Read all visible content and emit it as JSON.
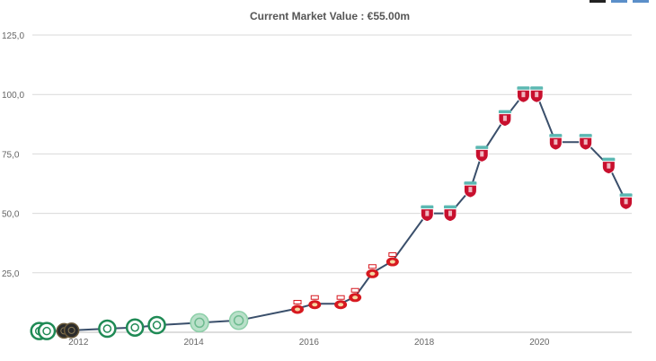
{
  "chart_data": {
    "type": "line",
    "title": "Current Market Value : €55.00m",
    "xlabel": "",
    "ylabel": "",
    "x_ticks": [
      "2012",
      "2014",
      "2016",
      "2018",
      "2020"
    ],
    "y_ticks": [
      "25,0",
      "50,0",
      "75,0",
      "100,0",
      "125,0"
    ],
    "xlim": [
      2011.2,
      2021.6
    ],
    "ylim": [
      0,
      125
    ],
    "grid": true,
    "legend": "none",
    "series": [
      {
        "x": [
          2011.32,
          2011.45,
          2011.75,
          2011.88,
          2012.5,
          2012.98,
          2013.36,
          2014.1,
          2014.78,
          2015.8,
          2016.1,
          2016.55,
          2016.8,
          2017.1,
          2017.45,
          2018.05,
          2018.45,
          2018.8,
          2019.0,
          2019.4,
          2019.72,
          2019.95,
          2020.28,
          2020.8,
          2021.2,
          2021.5
        ],
        "y": [
          0.5,
          0.5,
          0.6,
          0.8,
          1.5,
          2,
          3,
          4,
          5,
          10,
          12,
          12,
          15,
          25,
          30,
          50,
          50,
          60,
          75,
          90,
          100,
          100,
          80,
          80,
          70,
          55
        ],
        "clubs": [
          "celtic",
          "celtic",
          "black",
          "black",
          "celtic",
          "celtic",
          "celtic",
          "celtic-pale",
          "celtic-pale",
          "southampton",
          "southampton",
          "southampton",
          "southampton",
          "southampton",
          "southampton",
          "liverpool",
          "liverpool",
          "liverpool",
          "liverpool",
          "liverpool",
          "liverpool",
          "liverpool",
          "liverpool",
          "liverpool",
          "liverpool",
          "liverpool"
        ]
      }
    ]
  },
  "colors": {
    "line": "#3a4f6b",
    "grid": "#d9d9d9",
    "liverpool": "#c8102e",
    "liverpool_cap": "#5bb8b2",
    "southampton": "#d71920",
    "celtic": "#1f8a55",
    "celtic_pale": "#b9e0c9",
    "black": "#2b2b2b"
  }
}
